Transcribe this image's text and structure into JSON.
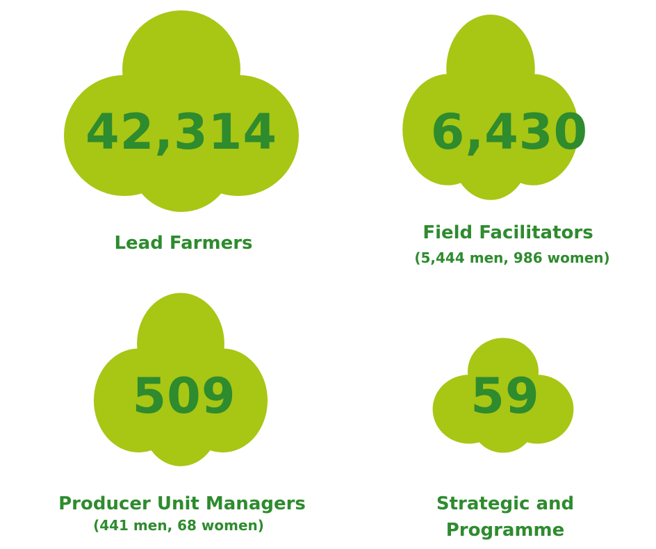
{
  "items": [
    {
      "value": "42,314",
      "label": "Lead Farmers"
    },
    {
      "value": "6,430",
      "label": "Field Facilitators",
      "sublabel": "(5,444 men, 986 women)"
    },
    {
      "value": "509",
      "label": "Producer Unit Managers",
      "sublabel": "(441 men, 68 women)"
    },
    {
      "value": "59",
      "label": "Strategic and Programme Partners"
    }
  ]
}
